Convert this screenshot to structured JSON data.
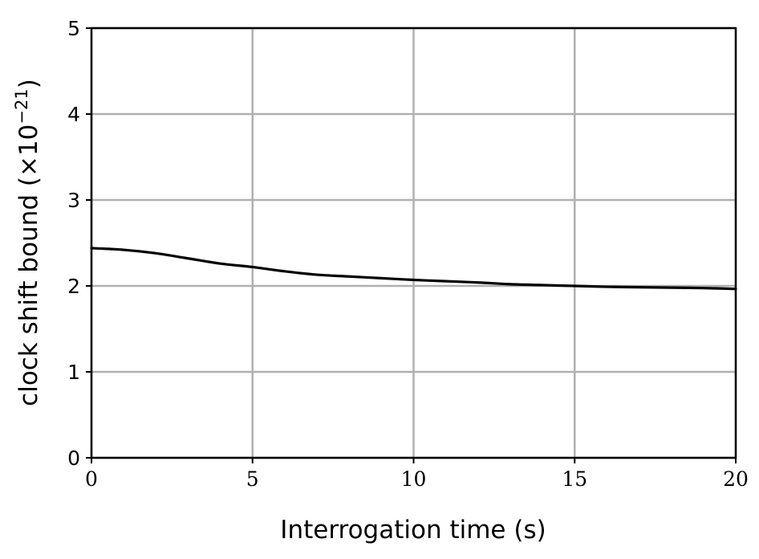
{
  "chart_data": {
    "type": "line",
    "title": "",
    "xlabel": "Interrogation time (s)",
    "ylabel": "clock shift bound (×10",
    "ylabel_exponent": "−21",
    "ylabel_close": ")",
    "xlim": [
      0,
      20
    ],
    "ylim": [
      0,
      5
    ],
    "xticks": [
      0,
      5,
      10,
      15,
      20
    ],
    "yticks": [
      0,
      1,
      2,
      3,
      4,
      5
    ],
    "grid": true,
    "series": [
      {
        "color": "#000000",
        "x": [
          0,
          1,
          2,
          3,
          4,
          5,
          6,
          7,
          8,
          9,
          10,
          11,
          12,
          13,
          14,
          15,
          16,
          17,
          18,
          19,
          20
        ],
        "y": [
          2.44,
          2.42,
          2.38,
          2.32,
          2.26,
          2.22,
          2.17,
          2.13,
          2.11,
          2.09,
          2.07,
          2.055,
          2.04,
          2.02,
          2.01,
          2.0,
          1.99,
          1.985,
          1.98,
          1.975,
          1.965
        ]
      }
    ]
  }
}
